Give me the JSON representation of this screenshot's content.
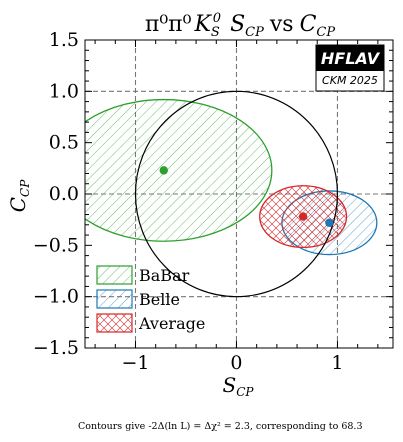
{
  "chart_data": {
    "type": "scatter",
    "title": {
      "particles": "π⁰π⁰",
      "kaon": "K",
      "kaon_sub": "S",
      "kaon_sup": "0",
      "param1": "S",
      "param1_sub": "CP",
      "vs": "vs",
      "param2": "C",
      "param2_sub": "CP"
    },
    "xlabel": {
      "main": "S",
      "sub": "CP"
    },
    "ylabel": {
      "main": "C",
      "sub": "CP"
    },
    "xlim": [
      -1.5,
      1.55
    ],
    "ylim": [
      -1.5,
      1.5
    ],
    "x_ticks": [
      -1,
      0,
      1
    ],
    "x_tick_labels": [
      "−1",
      "0",
      "1"
    ],
    "y_ticks": [
      1.5,
      1.0,
      0.5,
      0.0,
      -0.5,
      -1.0,
      -1.5
    ],
    "y_tick_labels": [
      "1.5",
      "1.0",
      "0.5",
      "0.0",
      "−0.5",
      "−1.0",
      "−1.5"
    ],
    "reference_lines": {
      "x": [
        -1,
        0,
        1
      ],
      "y": [
        1,
        0,
        -1
      ]
    },
    "physical_boundary": {
      "shape": "unit-circle",
      "center": [
        0,
        0
      ],
      "radius": 1,
      "color": "#000000"
    },
    "series": [
      {
        "name": "BaBar",
        "center": [
          -0.72,
          0.23
        ],
        "semi_axis_x": 1.07,
        "semi_axis_y": 0.69,
        "color": "#2ca02c",
        "hatch": "diagonal"
      },
      {
        "name": "Belle",
        "center": [
          0.92,
          -0.28
        ],
        "semi_axis_x": 0.47,
        "semi_axis_y": 0.31,
        "color": "#1f77b4",
        "hatch": "diagonal"
      },
      {
        "name": "Average",
        "center": [
          0.66,
          -0.22
        ],
        "semi_axis_x": 0.43,
        "semi_axis_y": 0.3,
        "color": "#d62728",
        "hatch": "cross"
      }
    ],
    "legend_position": "bottom-left",
    "logo": {
      "main": "HFLAV",
      "sub": "CKM 2025"
    },
    "footnote": "Contours give -2Δ(ln L) = Δχ² = 2.3, corresponding to 68.3"
  }
}
